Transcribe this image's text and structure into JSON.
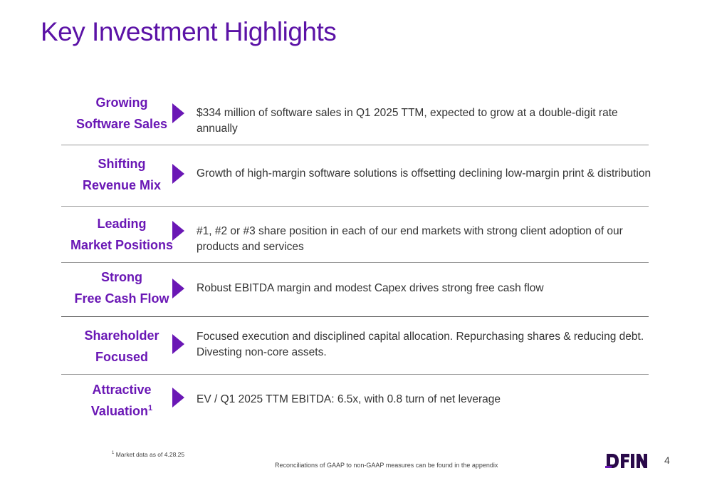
{
  "title": "Key Investment Highlights",
  "highlights": [
    {
      "label_line1": "Growing",
      "label_line2": "Software Sales",
      "label_sup": "",
      "text": "$334 million of software sales in Q1 2025 TTM, expected to grow at a double-digit rate annually"
    },
    {
      "label_line1": "Shifting",
      "label_line2": "Revenue Mix",
      "label_sup": "",
      "text": "Growth of high-margin software solutions is offsetting declining low-margin print & distribution"
    },
    {
      "label_line1": "Leading",
      "label_line2": "Market Positions",
      "label_sup": "",
      "text": "#1, #2 or #3 share position in each of our end markets with strong client adoption of our products and services"
    },
    {
      "label_line1": "Strong",
      "label_line2": "Free Cash Flow",
      "label_sup": "",
      "text": "Robust EBITDA margin and modest Capex drives strong free cash flow"
    },
    {
      "label_line1": "Shareholder",
      "label_line2": "Focused",
      "label_sup": "",
      "text": "Focused execution and disciplined capital allocation. Repurchasing shares & reducing debt. Divesting non-core assets."
    },
    {
      "label_line1": "Attractive",
      "label_line2": "Valuation",
      "label_sup": "1",
      "text": "EV / Q1 2025 TTM EBITDA: 6.5x, with 0.8 turn of net leverage"
    }
  ],
  "footnote_sup": "1",
  "footnote_text": "Market data as of 4.28.25",
  "reconciliation_note": "Reconciliations of GAAP to non-GAAP measures can be found in the appendix",
  "logo_text": "DFIN",
  "page_number": "4",
  "colors": {
    "accent": "#6a17b5",
    "title": "#5b12a6",
    "logo": "#2a0a4a",
    "divider": "#9a9a9a"
  }
}
